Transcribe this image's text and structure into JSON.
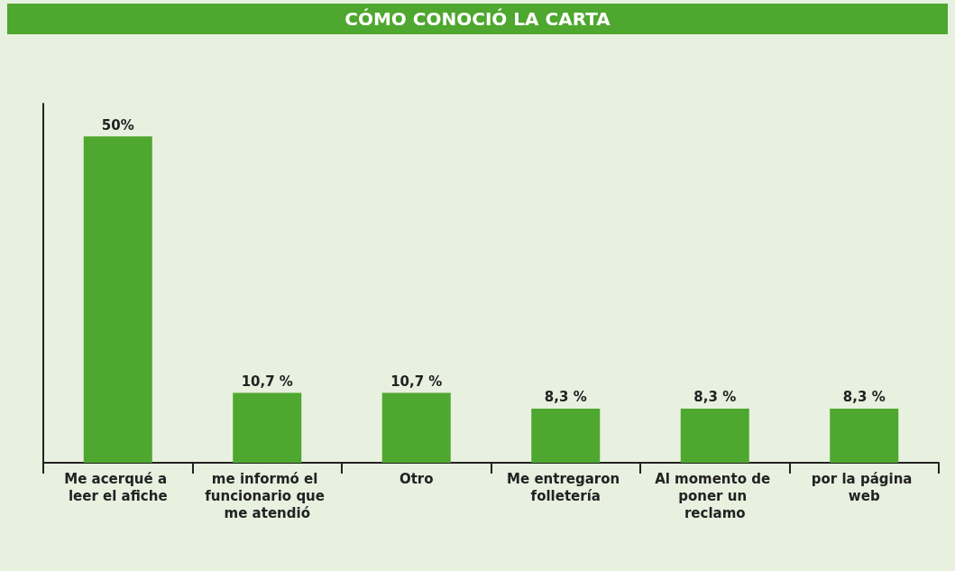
{
  "chart_data": {
    "type": "bar",
    "title": "CÓMO CONOCIÓ LA CARTA",
    "categories": [
      "Me acerqué a leer el afiche",
      "me informó el funcionario que me atendió",
      "Otro",
      "Me entregaron folletería",
      "Al momento de poner un reclamo",
      "por la página web"
    ],
    "values": [
      50,
      10.7,
      10.7,
      8.3,
      8.3,
      8.3
    ],
    "value_labels": [
      "50%",
      "10,7 %",
      "10,7 %",
      "8,3 %",
      "8,3 %",
      "8,3 %"
    ],
    "color": "#4ea72e",
    "tick_labels": "x"
  }
}
